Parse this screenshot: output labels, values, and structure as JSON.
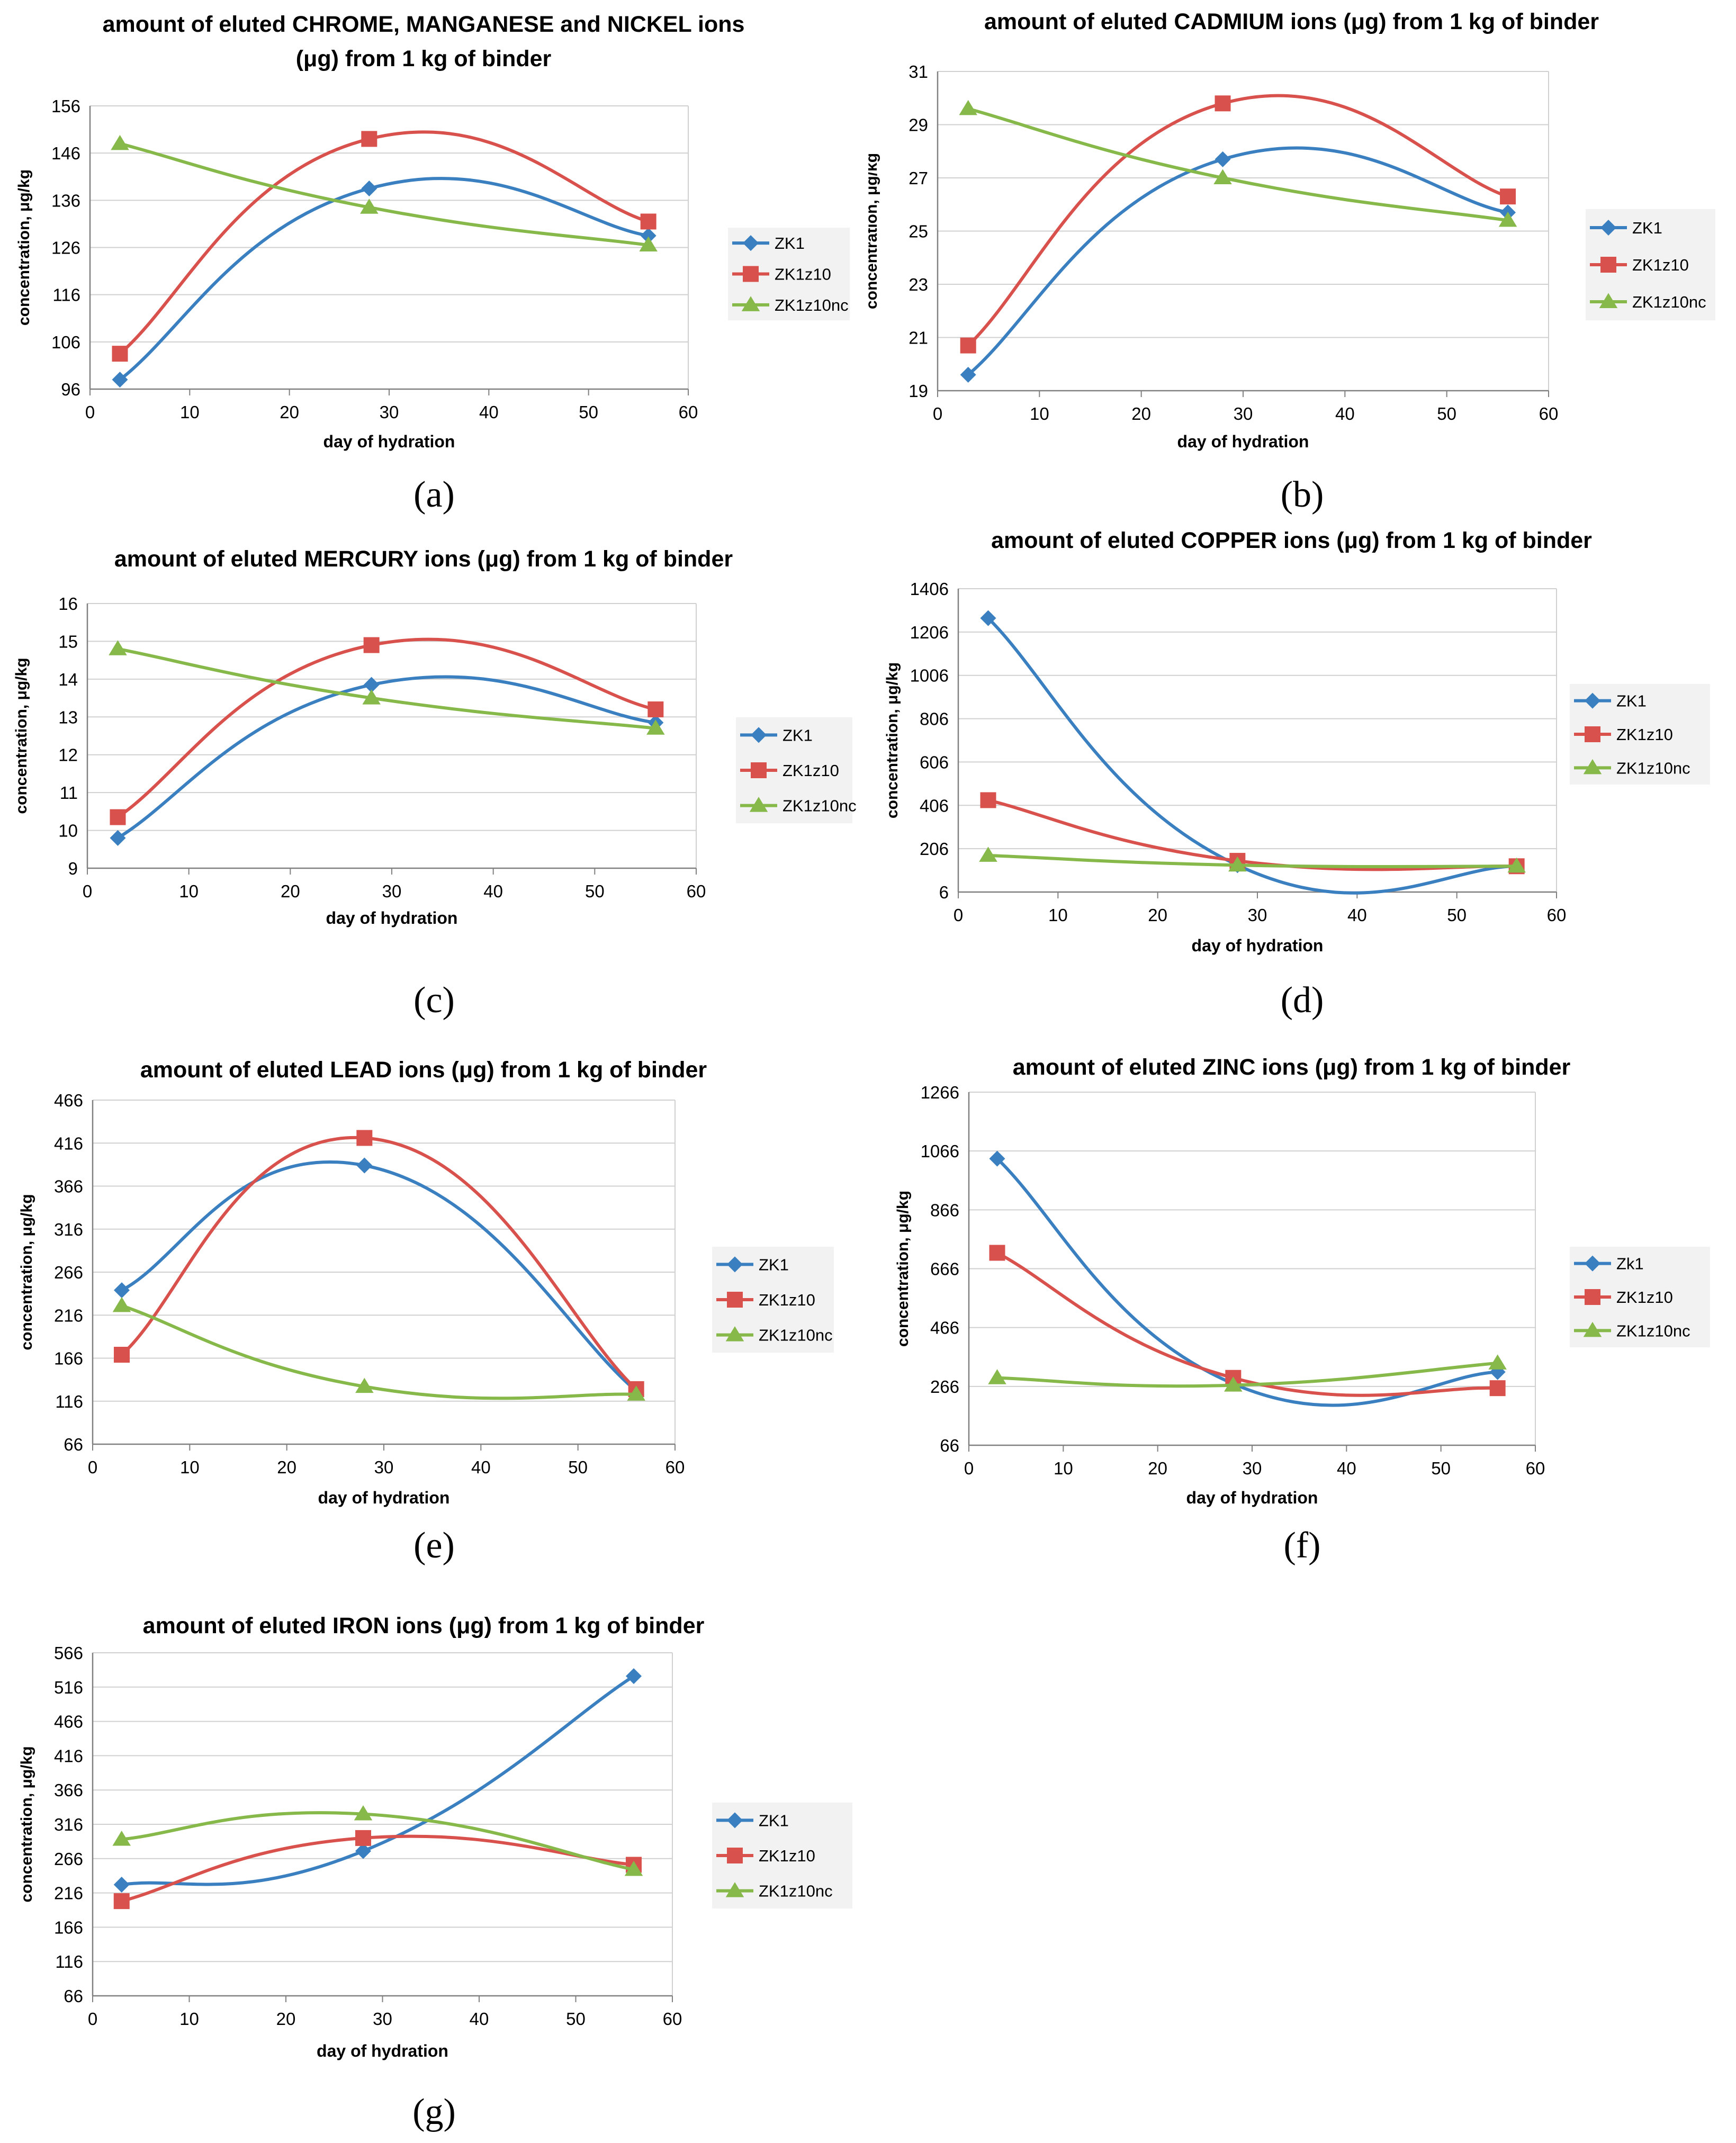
{
  "figure": {
    "colors": {
      "ZK1": "#3a7fc0",
      "ZK1z10": "#d9514c",
      "ZK1z10nc": "#86b84a",
      "grid": "#d0d0d0",
      "axis": "#808080",
      "legend_bg": "#f2f2f2"
    }
  },
  "chart_data": [
    {
      "type": "line",
      "panel": "(a)",
      "title_lines": [
        "amount of eluted CHROME, MANGANESE and NICKEL ions",
        "(μg) from 1 kg of binder"
      ],
      "xlabel": "day of hydration",
      "ylabel": "concentration, μg/kg",
      "xlim": [
        0,
        60
      ],
      "xticks": [
        0,
        10,
        20,
        30,
        40,
        50,
        60
      ],
      "ylim": [
        96,
        156
      ],
      "yticks": [
        96,
        106,
        116,
        126,
        136,
        146,
        156
      ],
      "x": [
        3,
        28,
        56
      ],
      "series": [
        {
          "name": "ZK1",
          "marker": "diamond",
          "values": [
            98,
            138.5,
            128.5
          ]
        },
        {
          "name": "ZK1z10",
          "marker": "square",
          "values": [
            103.5,
            149,
            131.5
          ]
        },
        {
          "name": "ZK1z10nc",
          "marker": "triangle",
          "values": [
            148,
            134.5,
            126.5
          ]
        }
      ]
    },
    {
      "type": "line",
      "panel": "(b)",
      "title_lines": [
        "amount of eluted CADMIUM ions (μg) from 1 kg of binder"
      ],
      "xlabel": "day of hydration",
      "ylabel": "concentration, μg/kg",
      "xlim": [
        0,
        60
      ],
      "xticks": [
        0,
        10,
        20,
        30,
        40,
        50,
        60
      ],
      "ylim": [
        19,
        31
      ],
      "yticks": [
        19,
        21,
        23,
        25,
        27,
        29,
        31
      ],
      "x": [
        3,
        28,
        56
      ],
      "series": [
        {
          "name": "ZK1",
          "marker": "diamond",
          "values": [
            19.6,
            27.7,
            25.7
          ]
        },
        {
          "name": "ZK1z10",
          "marker": "square",
          "values": [
            20.7,
            29.8,
            26.3
          ]
        },
        {
          "name": "ZK1z10nc",
          "marker": "triangle",
          "values": [
            29.6,
            27.0,
            25.4
          ]
        }
      ]
    },
    {
      "type": "line",
      "panel": "(c)",
      "title_lines": [
        "amount of eluted MERCURY ions (μg) from 1 kg of binder"
      ],
      "xlabel": "day of hydration",
      "ylabel": "concentration, μg/kg",
      "xlim": [
        0,
        60
      ],
      "xticks": [
        0,
        10,
        20,
        30,
        40,
        50,
        60
      ],
      "ylim": [
        9,
        16
      ],
      "yticks": [
        9,
        10,
        11,
        12,
        13,
        14,
        15,
        16
      ],
      "x": [
        3,
        28,
        56
      ],
      "series": [
        {
          "name": "ZK1",
          "marker": "diamond",
          "values": [
            9.8,
            13.85,
            12.85
          ]
        },
        {
          "name": "ZK1z10",
          "marker": "square",
          "values": [
            10.35,
            14.9,
            13.2
          ]
        },
        {
          "name": "ZK1z10nc",
          "marker": "triangle",
          "values": [
            14.8,
            13.5,
            12.7
          ]
        }
      ]
    },
    {
      "type": "line",
      "panel": "(d)",
      "title_lines": [
        "amount of eluted COPPER ions (μg) from 1 kg of binder"
      ],
      "xlabel": "day of hydration",
      "ylabel": "concentration, μg/kg",
      "xlim": [
        0,
        60
      ],
      "xticks": [
        0,
        10,
        20,
        30,
        40,
        50,
        60
      ],
      "ylim": [
        6,
        1406
      ],
      "yticks": [
        6,
        206,
        406,
        606,
        806,
        1006,
        1206,
        1406
      ],
      "x": [
        3,
        28,
        56
      ],
      "series": [
        {
          "name": "ZK1",
          "marker": "diamond",
          "values": [
            1270,
            130,
            125
          ]
        },
        {
          "name": "ZK1z10",
          "marker": "square",
          "values": [
            430,
            150,
            125
          ]
        },
        {
          "name": "ZK1z10nc",
          "marker": "triangle",
          "values": [
            175,
            130,
            125
          ]
        }
      ]
    },
    {
      "type": "line",
      "panel": "(e)",
      "title_lines": [
        "amount of eluted LEAD ions (μg) from 1 kg of binder"
      ],
      "xlabel": "day of hydration",
      "ylabel": "concentration, μg/kg",
      "xlim": [
        0,
        60
      ],
      "xticks": [
        0,
        10,
        20,
        30,
        40,
        50,
        60
      ],
      "ylim": [
        66,
        466
      ],
      "yticks": [
        66,
        116,
        166,
        216,
        266,
        316,
        366,
        416,
        466
      ],
      "x": [
        3,
        28,
        56
      ],
      "series": [
        {
          "name": "ZK1",
          "marker": "diamond",
          "values": [
            245,
            390,
            128
          ]
        },
        {
          "name": "ZK1z10",
          "marker": "square",
          "values": [
            170,
            422,
            130
          ]
        },
        {
          "name": "ZK1z10nc",
          "marker": "triangle",
          "values": [
            227,
            133,
            124
          ]
        }
      ]
    },
    {
      "type": "line",
      "panel": "(f)",
      "title_lines": [
        "amount of eluted ZINC ions (μg) from 1 kg of binder"
      ],
      "xlabel": "day of hydration",
      "ylabel": "concentration, μg/kg",
      "xlim": [
        0,
        60
      ],
      "xticks": [
        0,
        10,
        20,
        30,
        40,
        50,
        60
      ],
      "ylim": [
        66,
        1266
      ],
      "yticks": [
        66,
        266,
        466,
        666,
        866,
        1066,
        1266
      ],
      "x": [
        3,
        28,
        56
      ],
      "series": [
        {
          "name": "Zk1",
          "marker": "diamond",
          "values": [
            1040,
            275,
            315
          ]
        },
        {
          "name": "ZK1z10",
          "marker": "square",
          "values": [
            720,
            295,
            260
          ]
        },
        {
          "name": "ZK1z10nc",
          "marker": "triangle",
          "values": [
            295,
            270,
            345
          ]
        }
      ]
    },
    {
      "type": "line",
      "panel": "(g)",
      "title_lines": [
        "amount of eluted IRON ions (μg) from 1 kg of binder"
      ],
      "xlabel": "day of hydration",
      "ylabel": "concentration, μg/kg",
      "xlim": [
        0,
        60
      ],
      "xticks": [
        0,
        10,
        20,
        30,
        40,
        50,
        60
      ],
      "ylim": [
        66,
        566
      ],
      "yticks": [
        66,
        116,
        166,
        216,
        266,
        316,
        366,
        416,
        466,
        516,
        566
      ],
      "x": [
        3,
        28,
        56
      ],
      "series": [
        {
          "name": "ZK1",
          "marker": "diamond",
          "values": [
            228,
            277,
            532
          ]
        },
        {
          "name": "ZK1z10",
          "marker": "square",
          "values": [
            204,
            296,
            257
          ]
        },
        {
          "name": "ZK1z10nc",
          "marker": "triangle",
          "values": [
            294,
            331,
            250
          ]
        }
      ]
    }
  ]
}
